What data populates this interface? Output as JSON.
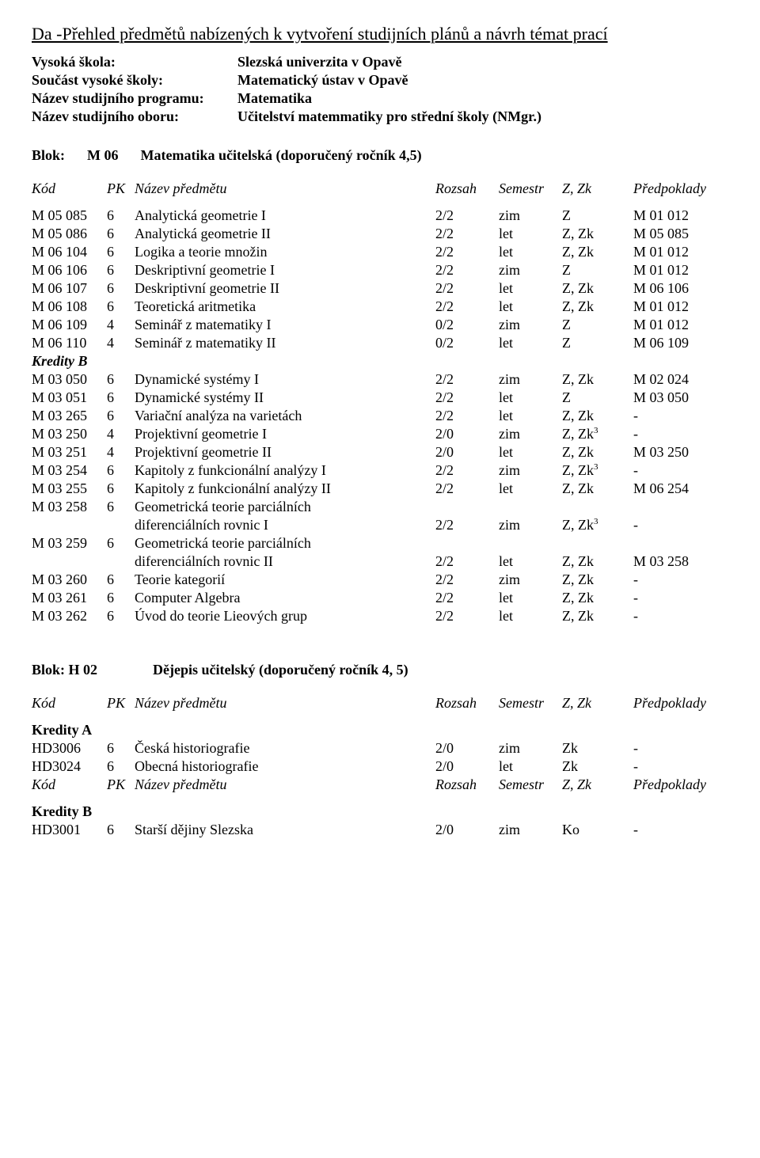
{
  "title": "Da -Přehled předmětů nabízených k vytvoření studijních plánů a návrh témat prací",
  "header": {
    "rows": [
      {
        "label": "Vysoká škola:",
        "value": "Slezská univerzita v Opavě"
      },
      {
        "label": "Součást vysoké školy:",
        "value": "Matematický ústav v Opavě"
      },
      {
        "label": "Název studijního programu:",
        "value": "Matematika"
      },
      {
        "label": "Název studijního oboru:",
        "value": "Učitelství matemmatiky pro střední školy (NMgr.)"
      }
    ]
  },
  "columns": {
    "kod": "Kód",
    "pk": "PK",
    "nazev": "Název předmětu",
    "rozsah": "Rozsah",
    "semestr": "Semestr",
    "zzk": "Z, Zk",
    "pred": "Předpoklady"
  },
  "block1": {
    "label_prefix": "Blok:",
    "label_code": "M 06",
    "label_name": "Matematika učitelská (doporučený ročník 4,5)",
    "rows": [
      {
        "kod": "M 05 085",
        "pk": "6",
        "nazev": "Analytická geometrie I",
        "rozsah": "2/2",
        "sem": "zim",
        "zzk": "Z",
        "pred": "M 01 012"
      },
      {
        "kod": "M 05 086",
        "pk": "6",
        "nazev": "Analytická geometrie II",
        "rozsah": "2/2",
        "sem": "let",
        "zzk": "Z, Zk",
        "pred": "M 05 085"
      },
      {
        "kod": "M 06 104",
        "pk": "6",
        "nazev": "Logika a teorie množin",
        "rozsah": "2/2",
        "sem": "let",
        "zzk": "Z, Zk",
        "pred": "M 01 012"
      },
      {
        "kod": "M 06 106",
        "pk": "6",
        "nazev": "Deskriptivní geometrie I",
        "rozsah": "2/2",
        "sem": "zim",
        "zzk": "Z",
        "pred": "M 01 012"
      },
      {
        "kod": "M 06 107",
        "pk": "6",
        "nazev": "Deskriptivní geometrie II",
        "rozsah": "2/2",
        "sem": "let",
        "zzk": "Z, Zk",
        "pred": "M 06 106"
      },
      {
        "kod": "M 06 108",
        "pk": "6",
        "nazev": "Teoretická aritmetika",
        "rozsah": "2/2",
        "sem": "let",
        "zzk": "Z, Zk",
        "pred": "M 01 012"
      },
      {
        "kod": "M 06 109",
        "pk": "4",
        "nazev": "Seminář z matematiky I",
        "rozsah": "0/2",
        "sem": "zim",
        "zzk": "Z",
        "pred": "M 01 012"
      },
      {
        "kod": "M 06 110",
        "pk": "4",
        "nazev": "Seminář z matematiky II",
        "rozsah": "0/2",
        "sem": "let",
        "zzk": "Z",
        "pred": "M 06 109"
      }
    ],
    "kredity_b_label": "Kredity B",
    "rows_b": [
      {
        "kod": "M 03 050",
        "pk": "6",
        "nazev": "Dynamické systémy I",
        "rozsah": "2/2",
        "sem": "zim",
        "zzk": "Z, Zk",
        "pred": "M 02 024"
      },
      {
        "kod": "M 03 051",
        "pk": "6",
        "nazev": "Dynamické systémy II",
        "rozsah": "2/2",
        "sem": "let",
        "zzk": "Z",
        "pred": "M 03 050"
      },
      {
        "kod": "M 03 265",
        "pk": "6",
        "nazev": "Variační analýza na varietách",
        "rozsah": "2/2",
        "sem": "let",
        "zzk": "Z, Zk",
        "pred": "-"
      },
      {
        "kod": "M 03 250",
        "pk": "4",
        "nazev": "Projektivní geometrie I",
        "rozsah": "2/0",
        "sem": "zim",
        "zzk": "Z, Zk",
        "zzk_sup": "3",
        "pred": "-"
      },
      {
        "kod": "M 03 251",
        "pk": "4",
        "nazev": "Projektivní geometrie II",
        "rozsah": "2/0",
        "sem": "let",
        "zzk": "Z, Zk",
        "pred": "M 03 250"
      },
      {
        "kod": "M 03 254",
        "pk": "6",
        "nazev": "Kapitoly z funkcionální analýzy I",
        "rozsah": "2/2",
        "sem": "zim",
        "zzk": "Z, Zk",
        "zzk_sup": "3",
        "pred": "-"
      },
      {
        "kod": "M 03 255",
        "pk": "6",
        "nazev": "Kapitoly z funkcionální analýzy II",
        "rozsah": "2/2",
        "sem": "let",
        "zzk": "Z, Zk",
        "pred": "M 06 254"
      },
      {
        "kod": "M 03 258",
        "pk": "6",
        "nazev": "Geometrická teorie parciálních",
        "rozsah": "",
        "sem": "",
        "zzk": "",
        "pred": ""
      },
      {
        "kod": "",
        "pk": "",
        "nazev": "diferenciálních rovnic I",
        "rozsah": "2/2",
        "sem": "zim",
        "zzk": "Z, Zk",
        "zzk_sup": "3",
        "pred": "-"
      },
      {
        "kod": "M 03 259",
        "pk": "6",
        "nazev": "Geometrická teorie parciálních",
        "rozsah": "",
        "sem": "",
        "zzk": "",
        "pred": ""
      },
      {
        "kod": "",
        "pk": "",
        "nazev": "diferenciálních rovnic II",
        "rozsah": "2/2",
        "sem": "let",
        "zzk": "Z, Zk",
        "pred": "M 03 258"
      },
      {
        "kod": "M 03 260",
        "pk": "6",
        "nazev": "Teorie kategorií",
        "rozsah": "2/2",
        "sem": "zim",
        "zzk": "Z, Zk",
        "pred": "-"
      },
      {
        "kod": "M 03 261",
        "pk": "6",
        "nazev": "Computer Algebra",
        "rozsah": "2/2",
        "sem": "let",
        "zzk": "Z, Zk",
        "pred": "-"
      },
      {
        "kod": "M 03 262",
        "pk": "6",
        "nazev": "Úvod do teorie Lieových grup",
        "rozsah": "2/2",
        "sem": "let",
        "zzk": "Z, Zk",
        "pred": "-"
      }
    ]
  },
  "block2": {
    "label_prefix": "Blok: H 02",
    "label_name": "Dějepis učitelský (doporučený ročník 4, 5)",
    "kredity_a_label": "Kredity A",
    "rows_a": [
      {
        "kod": "HD3006",
        "pk": "6",
        "nazev": "Česká historiografie",
        "rozsah": "2/0",
        "sem": "zim",
        "zzk": "Zk",
        "pred": "-"
      },
      {
        "kod": "HD3024",
        "pk": "6",
        "nazev": "Obecná historiografie",
        "rozsah": "2/0",
        "sem": "let",
        "zzk": "Zk",
        "pred": "-"
      }
    ],
    "kredity_b_label": "Kredity B",
    "rows_b": [
      {
        "kod": "HD3001",
        "pk": "6",
        "nazev": "Starší dějiny Slezska",
        "rozsah": "2/0",
        "sem": "zim",
        "zzk": "Ko",
        "pred": "-"
      }
    ]
  }
}
